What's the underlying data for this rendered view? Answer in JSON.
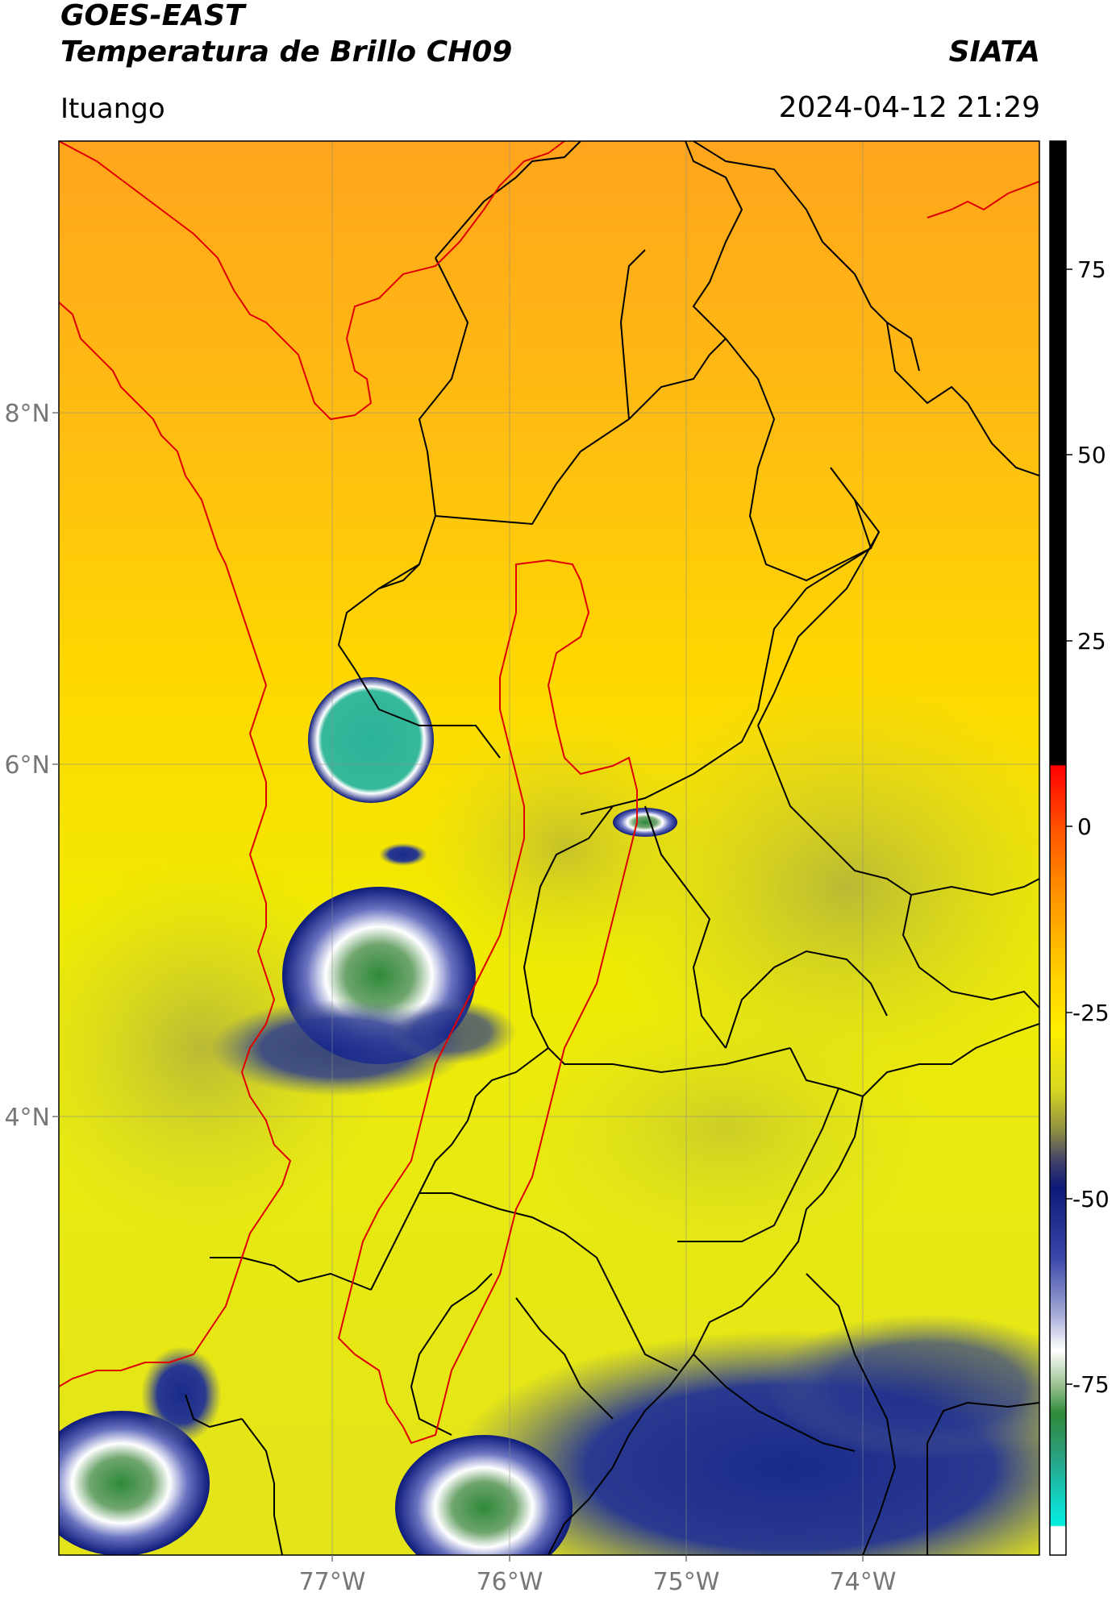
{
  "header": {
    "satellite": "GOES-EAST",
    "product": "Temperatura de Brillo CH09",
    "organization": "SIATA",
    "region": "Ituango",
    "timestamp": "2024-04-12 21:29"
  },
  "map": {
    "lat_labels": [
      "8°N",
      "6°N",
      "4°N"
    ],
    "lon_labels": [
      "77°W",
      "76°W",
      "75°W",
      "74°W"
    ]
  },
  "colorbar": {
    "tick_labels": [
      "75",
      "50",
      "25",
      "0",
      "-25",
      "-50",
      "-75"
    ],
    "colors": {
      "black": "#000000",
      "red": "#ff0000",
      "orange": "#ff9a00",
      "yellow": "#ffe800",
      "olive": "#9b9b33",
      "navy": "#0d1a7a",
      "white": "#ffffff",
      "green": "#2e8a3a",
      "cyan": "#00e6d8"
    }
  },
  "colors": {
    "cloud_top_cold": "#0d1a7a",
    "cloud_core": "#2e8a3a",
    "basin_outline": "#e00000",
    "border_lines": "#000000"
  }
}
